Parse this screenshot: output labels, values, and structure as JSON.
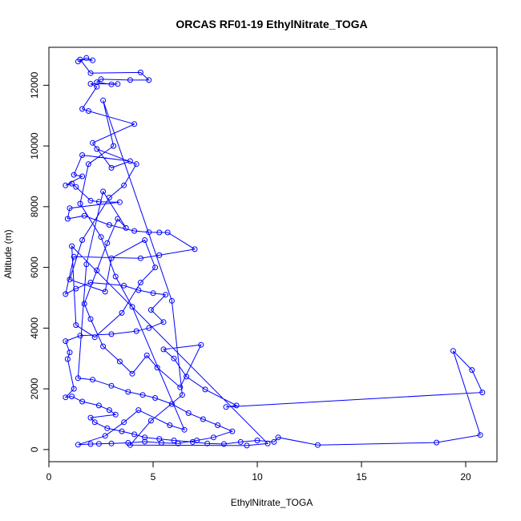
{
  "chart_data": {
    "type": "scatter",
    "title": "ORCAS RF01-19 EthylNitrate_TOGA",
    "xlabel": "EthylNitrate_TOGA",
    "ylabel": "Altitude (m)",
    "xlim": [
      0,
      21.5
    ],
    "ylim": [
      -400,
      13250
    ],
    "xticks": [
      0,
      5,
      10,
      15,
      20
    ],
    "yticks": [
      0,
      2000,
      4000,
      6000,
      8000,
      10000,
      12000
    ],
    "grid": false,
    "legend": "none",
    "series_color": "#0000ff",
    "marker": "open-circle-with-connecting-lines",
    "series": [
      {
        "points": [
          [
            1.4,
            12780
          ],
          [
            1.8,
            12900
          ],
          [
            2.1,
            12820
          ],
          [
            1.5,
            12850
          ],
          [
            2.0,
            12400
          ],
          [
            4.4,
            12420
          ],
          [
            4.8,
            12170
          ],
          [
            3.9,
            12170
          ],
          [
            2.5,
            12200
          ],
          [
            2.3,
            12100
          ],
          [
            3.0,
            12030
          ],
          [
            3.3,
            12040
          ],
          [
            2.0,
            12050
          ],
          [
            2.3,
            11950
          ],
          [
            1.6,
            11220
          ],
          [
            1.9,
            11150
          ],
          [
            4.1,
            10720
          ],
          [
            2.1,
            10100
          ],
          [
            3.0,
            9280
          ],
          [
            3.9,
            9500
          ],
          [
            1.6,
            9700
          ],
          [
            1.2,
            9050
          ],
          [
            1.6,
            9000
          ],
          [
            0.8,
            8700
          ],
          [
            1.1,
            8760
          ],
          [
            1.3,
            8650
          ],
          [
            2.0,
            8200
          ],
          [
            2.4,
            8160
          ],
          [
            3.4,
            8150
          ],
          [
            1.0,
            7950
          ],
          [
            0.9,
            7600
          ],
          [
            1.7,
            7700
          ],
          [
            2.9,
            7400
          ],
          [
            4.1,
            7200
          ],
          [
            4.8,
            7160
          ],
          [
            5.3,
            7150
          ],
          [
            5.7,
            7150
          ],
          [
            7.0,
            6600
          ],
          [
            5.3,
            6400
          ],
          [
            4.4,
            6300
          ],
          [
            1.2,
            6350
          ],
          [
            0.8,
            5120
          ],
          [
            1.3,
            5300
          ],
          [
            2.0,
            5500
          ],
          [
            3.6,
            5400
          ],
          [
            4.3,
            5250
          ],
          [
            5.0,
            5150
          ],
          [
            5.6,
            5100
          ],
          [
            4.9,
            4600
          ],
          [
            5.5,
            4200
          ],
          [
            4.8,
            4000
          ],
          [
            4.2,
            3900
          ],
          [
            3.0,
            3800
          ],
          [
            1.5,
            3750
          ],
          [
            0.8,
            3570
          ],
          [
            1.0,
            3200
          ],
          [
            0.9,
            2980
          ],
          [
            1.2,
            2000
          ],
          [
            0.8,
            1720
          ],
          [
            1.1,
            1750
          ],
          [
            1.6,
            1580
          ],
          [
            2.4,
            1450
          ],
          [
            2.9,
            1300
          ],
          [
            3.2,
            1150
          ],
          [
            2.0,
            1050
          ],
          [
            2.2,
            900
          ],
          [
            2.8,
            700
          ],
          [
            3.5,
            600
          ],
          [
            4.1,
            500
          ],
          [
            4.6,
            400
          ],
          [
            5.3,
            350
          ],
          [
            6.0,
            300
          ],
          [
            6.9,
            250
          ],
          [
            7.6,
            200
          ],
          [
            8.4,
            180
          ],
          [
            9.2,
            250
          ],
          [
            10.0,
            300
          ],
          [
            10.8,
            250
          ],
          [
            11.0,
            400
          ],
          [
            12.9,
            150
          ],
          [
            18.6,
            230
          ],
          [
            20.7,
            480
          ],
          [
            19.4,
            3250
          ],
          [
            20.3,
            2620
          ],
          [
            20.8,
            1880
          ],
          [
            8.5,
            1400
          ],
          [
            9.0,
            1450
          ],
          [
            7.5,
            1980
          ],
          [
            6.6,
            2400
          ],
          [
            6.0,
            3000
          ],
          [
            5.5,
            3300
          ],
          [
            7.3,
            3450
          ],
          [
            6.3,
            2050
          ],
          [
            5.2,
            2700
          ],
          [
            4.7,
            3100
          ],
          [
            4.0,
            2500
          ],
          [
            3.4,
            2900
          ],
          [
            2.6,
            3400
          ],
          [
            2.0,
            4300
          ],
          [
            1.7,
            4800
          ],
          [
            2.3,
            5900
          ],
          [
            2.8,
            6800
          ],
          [
            3.3,
            7600
          ],
          [
            3.7,
            7300
          ],
          [
            2.6,
            8500
          ],
          [
            1.8,
            6100
          ],
          [
            1.4,
            2350
          ],
          [
            2.1,
            2300
          ],
          [
            3.0,
            2100
          ],
          [
            3.8,
            1900
          ],
          [
            4.5,
            1800
          ],
          [
            5.1,
            1700
          ],
          [
            5.9,
            1500
          ],
          [
            6.7,
            1200
          ],
          [
            7.4,
            1000
          ],
          [
            8.1,
            800
          ],
          [
            8.8,
            600
          ],
          [
            7.9,
            400
          ],
          [
            7.1,
            300
          ],
          [
            6.2,
            200
          ],
          [
            5.4,
            220
          ],
          [
            4.6,
            260
          ],
          [
            3.8,
            220
          ],
          [
            3.0,
            200
          ],
          [
            2.4,
            190
          ],
          [
            2.0,
            180
          ],
          [
            1.4,
            160
          ],
          [
            2.7,
            450
          ],
          [
            3.6,
            900
          ],
          [
            4.3,
            1300
          ],
          [
            5.8,
            800
          ],
          [
            6.5,
            650
          ],
          [
            4.0,
            4700
          ],
          [
            3.2,
            5700
          ],
          [
            2.5,
            7000
          ],
          [
            1.5,
            8100
          ],
          [
            1.9,
            9400
          ],
          [
            3.1,
            10000
          ],
          [
            2.6,
            11500
          ],
          [
            5.9,
            4900
          ],
          [
            6.4,
            1800
          ],
          [
            4.9,
            950
          ],
          [
            3.9,
            150
          ],
          [
            9.5,
            130
          ],
          [
            10.5,
            200
          ],
          [
            1.1,
            6700
          ],
          [
            1.3,
            4100
          ],
          [
            2.2,
            3700
          ],
          [
            3.5,
            4500
          ],
          [
            4.4,
            5500
          ],
          [
            5.1,
            6000
          ],
          [
            4.6,
            6900
          ],
          [
            3.0,
            6300
          ],
          [
            2.7,
            5200
          ],
          [
            1.0,
            5600
          ],
          [
            1.6,
            6900
          ],
          [
            2.9,
            8300
          ],
          [
            3.6,
            8700
          ],
          [
            4.2,
            9400
          ],
          [
            2.3,
            9900
          ]
        ]
      }
    ]
  }
}
